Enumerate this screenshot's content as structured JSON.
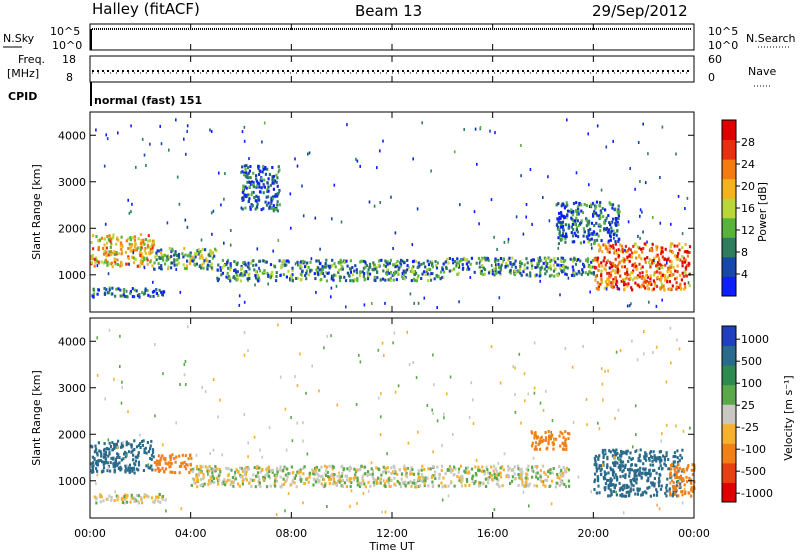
{
  "header": {
    "station": "Halley (fitACF)",
    "beam": "Beam 13",
    "date": "29/Sep/2012"
  },
  "status_panel": {
    "nsky_label": "N.Sky",
    "nsearch_label": "N.Search",
    "noise_ticks_left": [
      "10^5",
      "10^0"
    ],
    "noise_ticks_right": [
      "10^5",
      "10^0"
    ],
    "freq_label_1": "Freq.",
    "freq_label_2": "[MHz]",
    "freq_ticks": [
      "18",
      "8"
    ],
    "nave_label": "Nave",
    "nave_ticks": [
      "60",
      "0"
    ],
    "cpid_label": "CPID",
    "cpid_value": "normal (fast) 151"
  },
  "time_axis": {
    "label": "Time UT",
    "ticks": [
      "00:00",
      "04:00",
      "08:00",
      "12:00",
      "16:00",
      "20:00",
      "00:00"
    ]
  },
  "chart_data": [
    {
      "type": "heatmap",
      "panel": "power",
      "ylabel": "Slant Range [km]",
      "y_ticks": [
        "1000",
        "2000",
        "3000",
        "4000"
      ],
      "ylim": [
        200,
        4500
      ],
      "xlim_hours": [
        0,
        24
      ],
      "colorbar_label": "Power [dB]",
      "colorbar_ticks": [
        "4",
        "8",
        "12",
        "16",
        "20",
        "24",
        "28"
      ],
      "colorbar_colors": [
        "#0d1fff",
        "#1747a8",
        "#2f7d5e",
        "#57b33a",
        "#b9d63a",
        "#f5b21a",
        "#f47a12",
        "#e83010",
        "#e00000"
      ],
      "features": [
        {
          "t0": 0.0,
          "t1": 2.5,
          "r0": 1200,
          "r1": 1900,
          "level": 0.6
        },
        {
          "t0": 2.5,
          "t1": 5.0,
          "r0": 1150,
          "r1": 1600,
          "level": 0.35
        },
        {
          "t0": 5.0,
          "t1": 14.0,
          "r0": 900,
          "r1": 1350,
          "level": 0.3
        },
        {
          "t0": 14.0,
          "t1": 20.0,
          "r0": 1000,
          "r1": 1400,
          "level": 0.3
        },
        {
          "t0": 20.0,
          "t1": 23.8,
          "r0": 700,
          "r1": 1700,
          "level": 0.75
        },
        {
          "t0": 0.0,
          "t1": 3.0,
          "r0": 550,
          "r1": 750,
          "level": 0.2
        },
        {
          "t0": 6.0,
          "t1": 7.5,
          "r0": 2400,
          "r1": 3400,
          "level": 0.15
        },
        {
          "t0": 18.5,
          "t1": 21.0,
          "r0": 1700,
          "r1": 2600,
          "level": 0.2
        }
      ]
    },
    {
      "type": "heatmap",
      "panel": "velocity",
      "ylabel": "Slant Range [km]",
      "y_ticks": [
        "1000",
        "2000",
        "3000",
        "4000"
      ],
      "ylim": [
        200,
        4500
      ],
      "xlim_hours": [
        0,
        24
      ],
      "colorbar_label": "Velocity [m s⁻¹]",
      "colorbar_ticks": [
        "1000",
        "500",
        "100",
        "25",
        "-25",
        "-100",
        "-500",
        "-1000"
      ],
      "colorbar_colors": [
        "#1f3fbf",
        "#2a6a8a",
        "#2f8a4f",
        "#5aa84a",
        "#c8c8c0",
        "#f7b030",
        "#f08018",
        "#e84010",
        "#e00000"
      ],
      "features": [
        {
          "t0": 0.0,
          "t1": 2.5,
          "r0": 1200,
          "r1": 1900,
          "vel": 200
        },
        {
          "t0": 2.5,
          "t1": 4.0,
          "r0": 1200,
          "r1": 1600,
          "vel": -200
        },
        {
          "t0": 4.0,
          "t1": 19.0,
          "r0": 900,
          "r1": 1350,
          "vel": 0
        },
        {
          "t0": 17.5,
          "t1": 19.0,
          "r0": 1700,
          "r1": 2100,
          "vel": -200
        },
        {
          "t0": 20.0,
          "t1": 23.5,
          "r0": 700,
          "r1": 1700,
          "vel": 300
        },
        {
          "t0": 23.0,
          "t1": 24.0,
          "r0": 700,
          "r1": 1400,
          "vel": -400
        },
        {
          "t0": 0.0,
          "t1": 3.0,
          "r0": 550,
          "r1": 750,
          "vel": 0
        }
      ]
    }
  ]
}
